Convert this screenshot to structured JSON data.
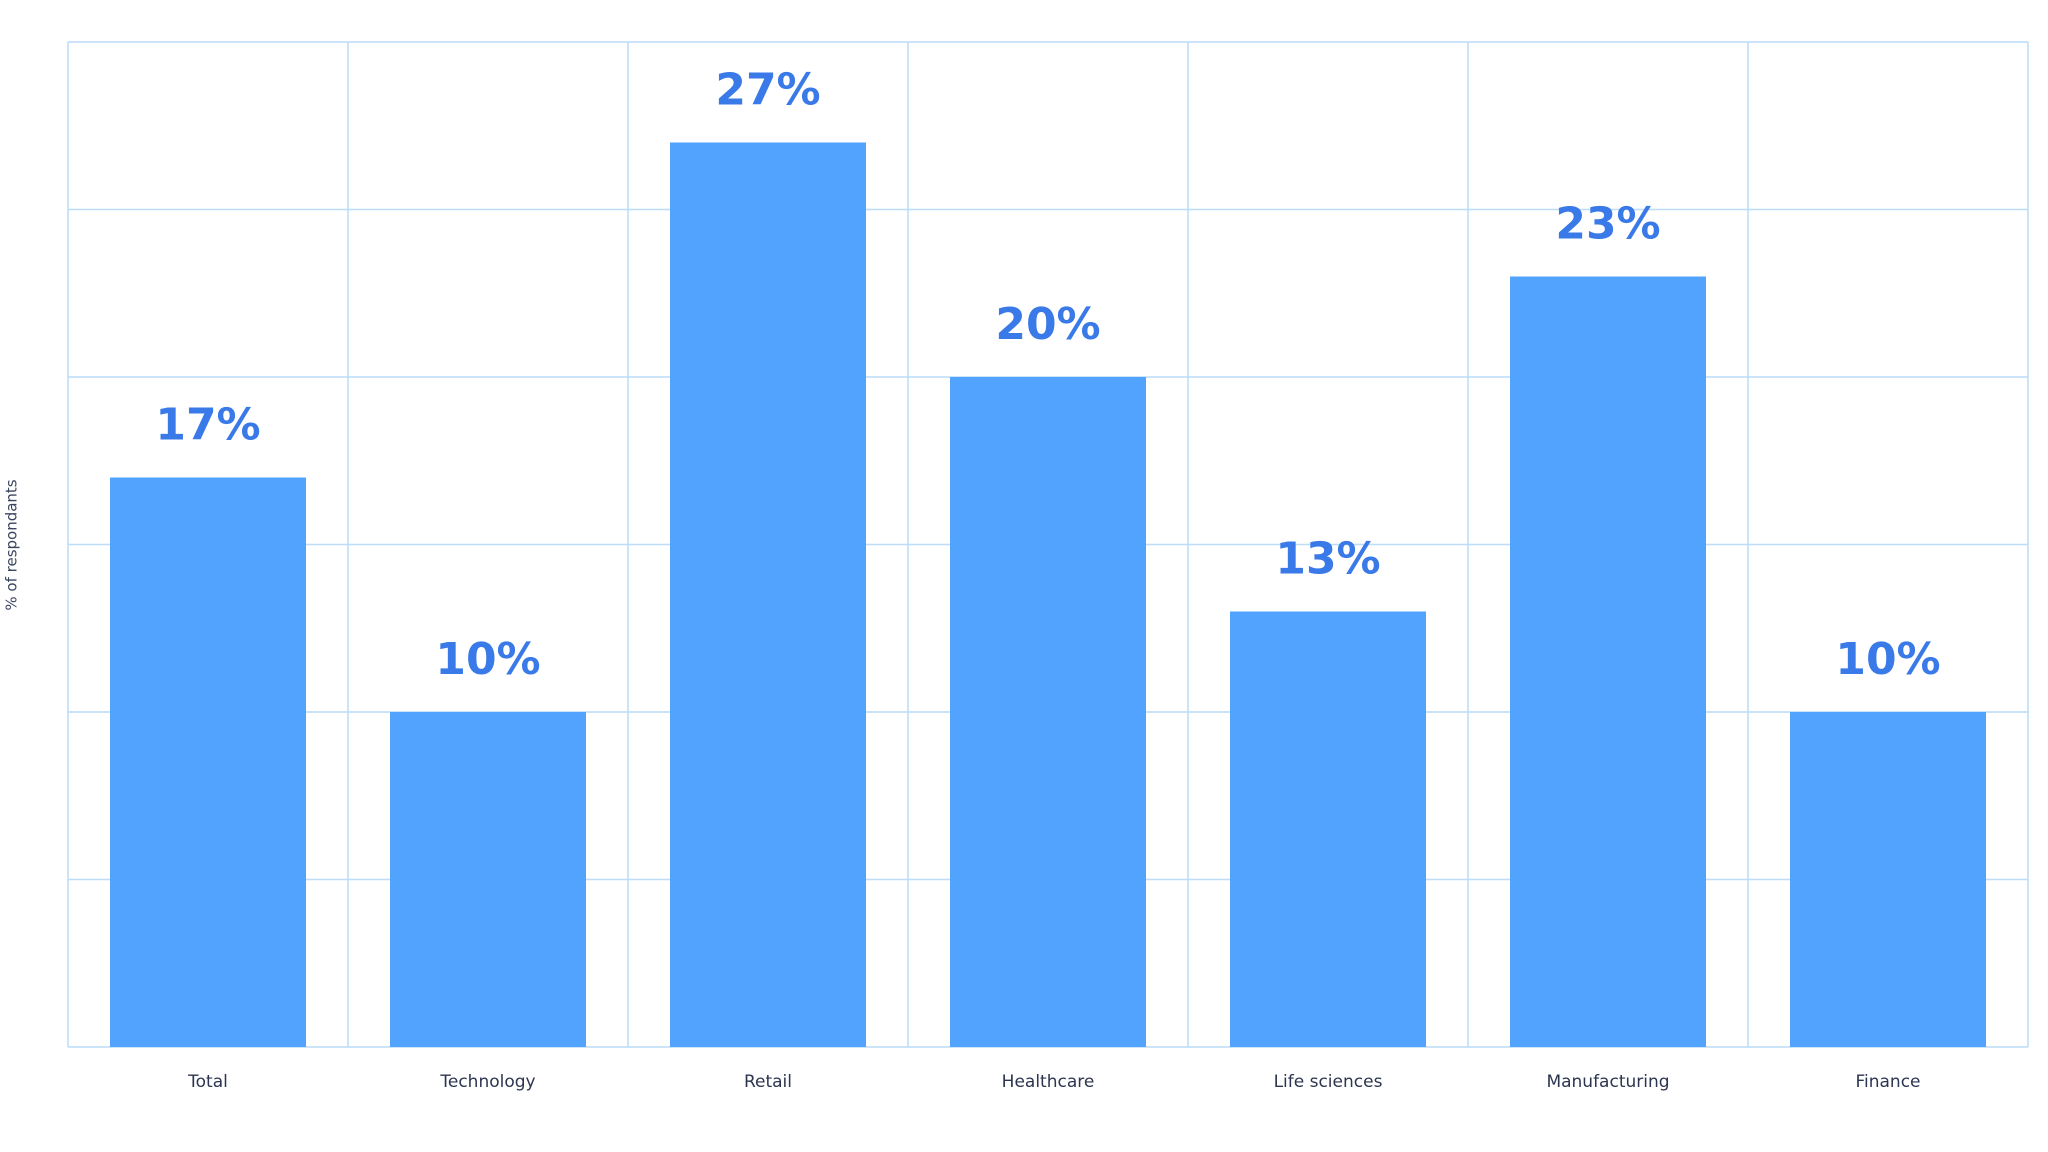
{
  "chart_data": {
    "type": "bar",
    "y_label": "% of respondants",
    "categories": [
      "Total",
      "Technology",
      "Retail",
      "Healthcare",
      "Life sciences",
      "Manufacturing",
      "Finance"
    ],
    "values": [
      17,
      10,
      27,
      20,
      13,
      23,
      10
    ],
    "value_labels": [
      "17%",
      "10%",
      "27%",
      "20%",
      "13%",
      "23%",
      "10%"
    ],
    "color": "#52a3fd",
    "ylim": [
      0,
      30
    ],
    "yticks": [
      0,
      5,
      10,
      15,
      20,
      25,
      30
    ],
    "grid": true
  }
}
